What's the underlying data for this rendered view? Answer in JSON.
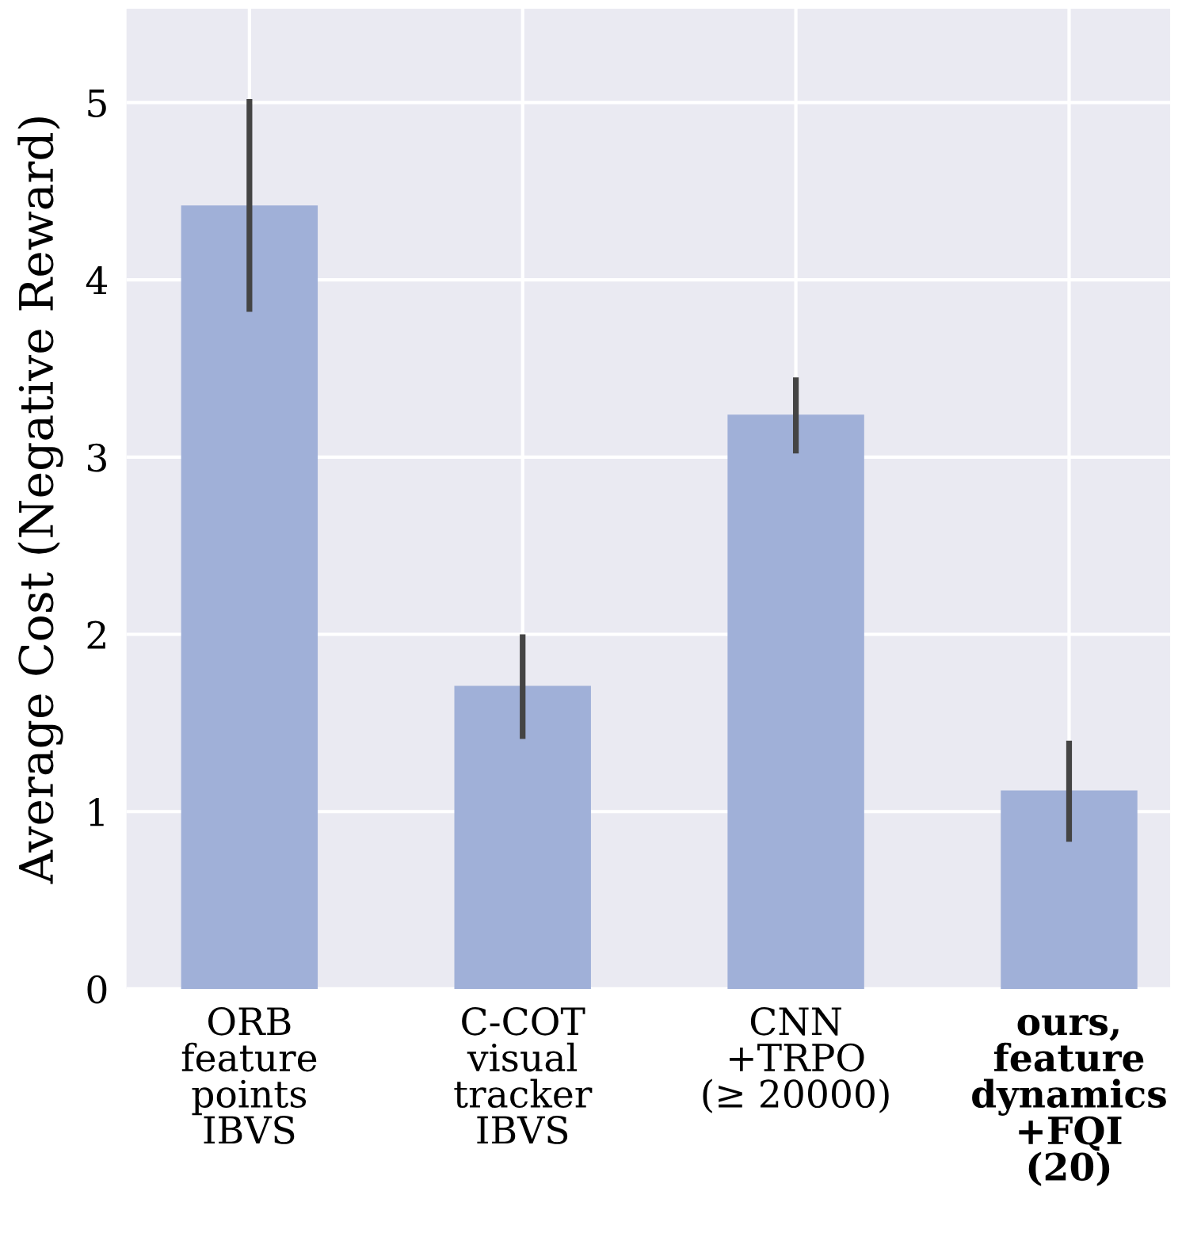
{
  "chart_data": {
    "type": "bar",
    "ylabel": "Average Cost (Negative Reward)",
    "categories": [
      "ORB\nfeature\npoints\nIBVS",
      "C-COT\nvisual\ntracker\nIBVS",
      "CNN\n+TRPO\n(≥ 20000)",
      "ours,\nfeature\ndynamics\n+FQI\n(20)"
    ],
    "values": [
      4.42,
      1.71,
      3.24,
      1.12
    ],
    "errors": [
      [
        3.82,
        5.02
      ],
      [
        1.41,
        2.0
      ],
      [
        3.02,
        3.45
      ],
      [
        0.83,
        1.4
      ]
    ],
    "color": "#a0b0d8",
    "ylim": [
      0,
      5.53
    ],
    "yticks": [
      0,
      1,
      2,
      3,
      4,
      5
    ],
    "grid": true
  }
}
